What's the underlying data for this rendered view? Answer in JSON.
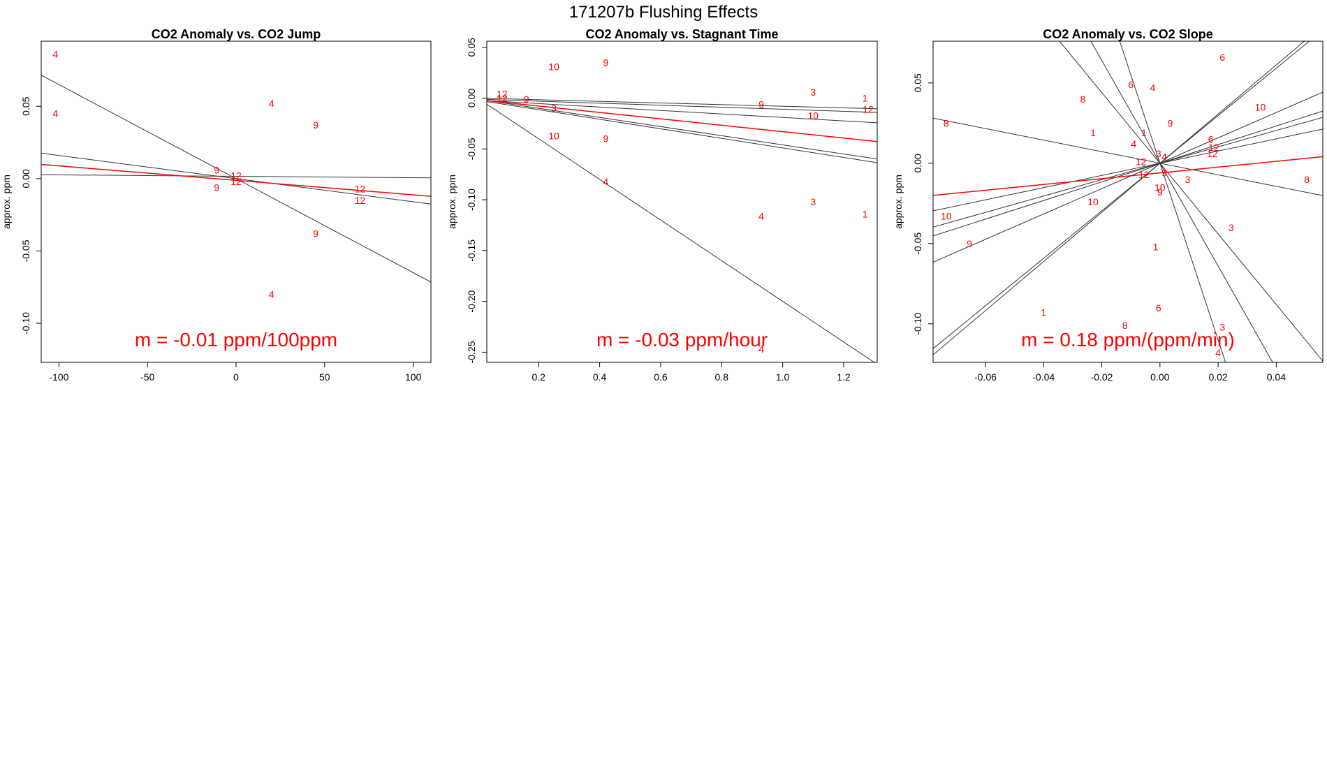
{
  "main_title": "171207b   Flushing Effects",
  "colors": {
    "points": "#ff0000",
    "mean_line": "#ff0000",
    "fit_lines": "#333333",
    "axes": "#000000"
  },
  "chart_data": [
    {
      "type": "scatter",
      "title": "CO2 Anomaly vs. CO2 Jump",
      "xlabel": "",
      "ylabel": "approx. ppm",
      "xlim": [
        -110,
        110
      ],
      "ylim": [
        -0.127,
        0.095
      ],
      "xticks": [
        -100,
        -50,
        0,
        50,
        100
      ],
      "xtick_labels": [
        "-100",
        "-50",
        "0",
        "50",
        "100"
      ],
      "yticks": [
        -0.1,
        -0.05,
        0.0,
        0.05
      ],
      "ytick_labels": [
        "-0.10",
        "-0.05",
        "0.00",
        "0.05"
      ],
      "points": [
        {
          "x": -102,
          "y": 0.086,
          "label": "4"
        },
        {
          "x": -102,
          "y": 0.045,
          "label": "4"
        },
        {
          "x": 20,
          "y": 0.052,
          "label": "4"
        },
        {
          "x": 45,
          "y": 0.037,
          "label": "9"
        },
        {
          "x": -11,
          "y": 0.006,
          "label": "9"
        },
        {
          "x": -11,
          "y": -0.006,
          "label": "9"
        },
        {
          "x": 0,
          "y": 0.002,
          "label": "12"
        },
        {
          "x": 0,
          "y": -0.002,
          "label": "12"
        },
        {
          "x": 70,
          "y": -0.007,
          "label": "12"
        },
        {
          "x": 70,
          "y": -0.015,
          "label": "12"
        },
        {
          "x": 45,
          "y": -0.038,
          "label": "9"
        },
        {
          "x": 20,
          "y": -0.08,
          "label": "4"
        }
      ],
      "fit_lines": [
        {
          "slope": -0.00065,
          "intercept": 0.0
        },
        {
          "slope": -0.00016,
          "intercept": 0.0
        },
        {
          "slope": -1e-05,
          "intercept": 0.0016
        }
      ],
      "mean_line": {
        "slope": -0.0001,
        "intercept": -0.0012
      },
      "annotation": "m = -0.01 ppm/100ppm"
    },
    {
      "type": "scatter",
      "title": "CO2 Anomaly vs. Stagnant Time",
      "xlabel": "",
      "ylabel": "approx. ppm",
      "xlim": [
        0.03,
        1.31
      ],
      "ylim": [
        -0.26,
        0.056
      ],
      "xticks": [
        0.2,
        0.4,
        0.6,
        0.8,
        1.0,
        1.2
      ],
      "xtick_labels": [
        "0.2",
        "0.4",
        "0.6",
        "0.8",
        "1.0",
        "1.2"
      ],
      "yticks": [
        -0.25,
        -0.2,
        -0.15,
        -0.1,
        -0.05,
        0.0,
        0.05
      ],
      "ytick_labels": [
        "-0.25",
        "-0.20",
        "-0.15",
        "-0.10",
        "-0.05",
        "0.00",
        "0.05"
      ],
      "points": [
        {
          "x": 0.25,
          "y": 0.031,
          "label": "10"
        },
        {
          "x": 0.42,
          "y": 0.035,
          "label": "9"
        },
        {
          "x": 0.08,
          "y": 0.004,
          "label": "12"
        },
        {
          "x": 0.08,
          "y": 0.0,
          "label": "12"
        },
        {
          "x": 0.16,
          "y": -0.001,
          "label": "9"
        },
        {
          "x": 0.25,
          "y": -0.01,
          "label": "3"
        },
        {
          "x": 0.93,
          "y": -0.006,
          "label": "9"
        },
        {
          "x": 1.1,
          "y": 0.006,
          "label": "3"
        },
        {
          "x": 1.27,
          "y": 0.0,
          "label": "1"
        },
        {
          "x": 1.1,
          "y": -0.017,
          "label": "10"
        },
        {
          "x": 1.28,
          "y": -0.011,
          "label": "12"
        },
        {
          "x": 0.25,
          "y": -0.037,
          "label": "10"
        },
        {
          "x": 0.42,
          "y": -0.04,
          "label": "9"
        },
        {
          "x": 0.42,
          "y": -0.082,
          "label": "4"
        },
        {
          "x": 1.1,
          "y": -0.102,
          "label": "3"
        },
        {
          "x": 0.93,
          "y": -0.116,
          "label": "4"
        },
        {
          "x": 1.27,
          "y": -0.114,
          "label": "1"
        },
        {
          "x": 0.93,
          "y": -0.247,
          "label": "4"
        }
      ],
      "fit_lines": [
        {
          "slope": -0.008,
          "intercept": 0.0
        },
        {
          "slope": -0.01,
          "intercept": -0.001
        },
        {
          "slope": -0.017,
          "intercept": -0.002
        },
        {
          "slope": -0.045,
          "intercept": -0.001
        },
        {
          "slope": -0.047,
          "intercept": -0.002
        },
        {
          "slope": -0.2,
          "intercept": 0.0
        }
      ],
      "mean_line": {
        "slope": -0.0315,
        "intercept": -0.0015
      },
      "annotation": "m = -0.03 ppm/hour"
    },
    {
      "type": "scatter",
      "title": "CO2 Anomaly vs. CO2 Slope",
      "xlabel": "",
      "ylabel": "approx. ppm",
      "xlim": [
        -0.078,
        0.056
      ],
      "ylim": [
        -0.124,
        0.076
      ],
      "xticks": [
        -0.06,
        -0.04,
        -0.02,
        0.0,
        0.02,
        0.04
      ],
      "xtick_labels": [
        "-0.06",
        "-0.04",
        "-0.02",
        "0.00",
        "0.02",
        "0.04"
      ],
      "yticks": [
        -0.1,
        -0.05,
        0.0,
        0.05
      ],
      "ytick_labels": [
        "-0.10",
        "-0.05",
        "0.00",
        "0.05"
      ],
      "points": [
        {
          "x": 0.0215,
          "y": 0.066,
          "label": "6"
        },
        {
          "x": -0.01,
          "y": 0.049,
          "label": "6"
        },
        {
          "x": -0.0025,
          "y": 0.047,
          "label": "4"
        },
        {
          "x": -0.0265,
          "y": 0.04,
          "label": "8"
        },
        {
          "x": 0.0345,
          "y": 0.035,
          "label": "10"
        },
        {
          "x": 0.0035,
          "y": 0.025,
          "label": "9"
        },
        {
          "x": -0.0735,
          "y": 0.025,
          "label": "8"
        },
        {
          "x": -0.023,
          "y": 0.019,
          "label": "1"
        },
        {
          "x": -0.0055,
          "y": 0.019,
          "label": "1"
        },
        {
          "x": -0.009,
          "y": 0.012,
          "label": "4"
        },
        {
          "x": 0.0175,
          "y": 0.015,
          "label": "6"
        },
        {
          "x": 0.0185,
          "y": 0.01,
          "label": "12"
        },
        {
          "x": 0.018,
          "y": 0.006,
          "label": "12"
        },
        {
          "x": -0.0005,
          "y": 0.006,
          "label": "3"
        },
        {
          "x": 0.0015,
          "y": 0.004,
          "label": "4"
        },
        {
          "x": -0.0065,
          "y": 0.001,
          "label": "12"
        },
        {
          "x": -0.0055,
          "y": -0.007,
          "label": "12"
        },
        {
          "x": 0.0015,
          "y": -0.006,
          "label": "9"
        },
        {
          "x": 0.0095,
          "y": -0.01,
          "label": "3"
        },
        {
          "x": 0.0505,
          "y": -0.01,
          "label": "8"
        },
        {
          "x": 0.0,
          "y": -0.015,
          "label": "10"
        },
        {
          "x": 0.0,
          "y": -0.018,
          "label": "9"
        },
        {
          "x": -0.023,
          "y": -0.024,
          "label": "10"
        },
        {
          "x": -0.0735,
          "y": -0.033,
          "label": "10"
        },
        {
          "x": -0.0655,
          "y": -0.05,
          "label": "9"
        },
        {
          "x": 0.0245,
          "y": -0.04,
          "label": "3"
        },
        {
          "x": -0.0015,
          "y": -0.052,
          "label": "1"
        },
        {
          "x": -0.0005,
          "y": -0.09,
          "label": "6"
        },
        {
          "x": -0.04,
          "y": -0.093,
          "label": "1"
        },
        {
          "x": -0.012,
          "y": -0.101,
          "label": "8"
        },
        {
          "x": 0.0215,
          "y": -0.102,
          "label": "3"
        },
        {
          "x": 0.02,
          "y": -0.118,
          "label": "4"
        }
      ],
      "fit_lines": [
        {
          "slope": 0.38,
          "intercept": 0.0
        },
        {
          "slope": 0.51,
          "intercept": 0.0
        },
        {
          "slope": 0.58,
          "intercept": 0.0
        },
        {
          "slope": 0.79,
          "intercept": 0.0
        },
        {
          "slope": 1.48,
          "intercept": 0.0
        },
        {
          "slope": 1.53,
          "intercept": 0.0
        },
        {
          "slope": -0.36,
          "intercept": 0.0
        },
        {
          "slope": -2.2,
          "intercept": 0.0
        },
        {
          "slope": -3.2,
          "intercept": 0.0
        },
        {
          "slope": -5.5,
          "intercept": 0.0
        }
      ],
      "mean_line": {
        "slope": 0.18,
        "intercept": -0.006
      },
      "annotation": "m = 0.18 ppm/(ppm/min)"
    }
  ]
}
